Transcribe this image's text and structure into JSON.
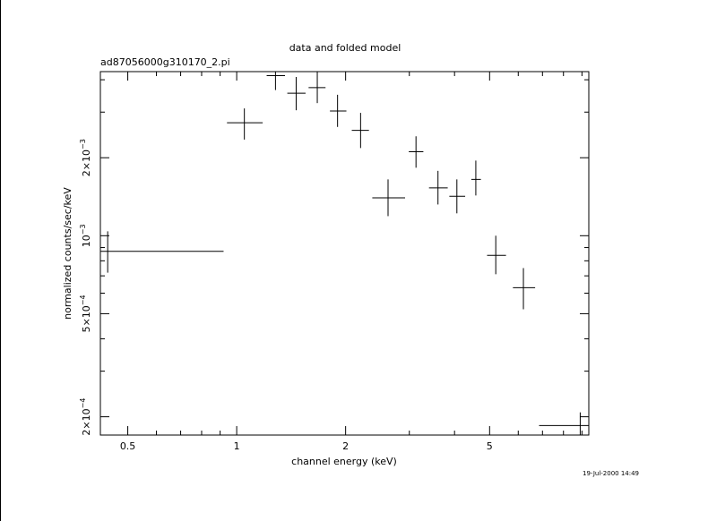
{
  "chart_data": {
    "type": "scatter",
    "title": "data and folded model",
    "subtitle": "ad87056000g310170_2.pi",
    "xlabel": "channel energy (keV)",
    "ylabel": "normalized counts/sec/keV",
    "x_scale": "log",
    "y_scale": "log",
    "xlim": [
      0.42,
      9.4
    ],
    "ylim": [
      0.00017,
      0.0043
    ],
    "x_ticks": [
      {
        "value": 0.5,
        "label": "0.5"
      },
      {
        "value": 1,
        "label": "1"
      },
      {
        "value": 2,
        "label": "2"
      },
      {
        "value": 5,
        "label": "5"
      }
    ],
    "y_ticks": [
      {
        "value": 0.0002,
        "mant": "2×10",
        "exp": "−4"
      },
      {
        "value": 0.0005,
        "mant": "5×10",
        "exp": "−4"
      },
      {
        "value": 0.001,
        "mant": "10",
        "exp": "−3"
      },
      {
        "value": 0.002,
        "mant": "2×10",
        "exp": "−3"
      }
    ],
    "points": [
      {
        "x": 0.44,
        "xlo": 0.42,
        "xhi": 0.92,
        "y": 0.00087,
        "ylo": 0.00072,
        "yhi": 0.00104
      },
      {
        "x": 1.05,
        "xlo": 0.94,
        "xhi": 1.18,
        "y": 0.00273,
        "ylo": 0.00235,
        "yhi": 0.0031
      },
      {
        "x": 1.28,
        "xlo": 1.21,
        "xhi": 1.36,
        "y": 0.00415,
        "ylo": 0.00365,
        "yhi": 0.0043
      },
      {
        "x": 1.46,
        "xlo": 1.38,
        "xhi": 1.55,
        "y": 0.00355,
        "ylo": 0.00305,
        "yhi": 0.0041
      },
      {
        "x": 1.67,
        "xlo": 1.58,
        "xhi": 1.76,
        "y": 0.00373,
        "ylo": 0.00325,
        "yhi": 0.0043
      },
      {
        "x": 1.9,
        "xlo": 1.81,
        "xhi": 2.01,
        "y": 0.00303,
        "ylo": 0.00263,
        "yhi": 0.0035
      },
      {
        "x": 2.2,
        "xlo": 2.08,
        "xhi": 2.32,
        "y": 0.00255,
        "ylo": 0.00218,
        "yhi": 0.00298
      },
      {
        "x": 2.62,
        "xlo": 2.37,
        "xhi": 2.92,
        "y": 0.0014,
        "ylo": 0.00119,
        "yhi": 0.00165
      },
      {
        "x": 3.13,
        "xlo": 2.99,
        "xhi": 3.28,
        "y": 0.00211,
        "ylo": 0.00183,
        "yhi": 0.00242
      },
      {
        "x": 3.6,
        "xlo": 3.4,
        "xhi": 3.83,
        "y": 0.00153,
        "ylo": 0.00132,
        "yhi": 0.00178
      },
      {
        "x": 4.06,
        "xlo": 3.87,
        "xhi": 4.28,
        "y": 0.00142,
        "ylo": 0.00122,
        "yhi": 0.00165
      },
      {
        "x": 4.58,
        "xlo": 4.45,
        "xhi": 4.73,
        "y": 0.00165,
        "ylo": 0.00143,
        "yhi": 0.00195
      },
      {
        "x": 5.2,
        "xlo": 4.92,
        "xhi": 5.55,
        "y": 0.00084,
        "ylo": 0.00071,
        "yhi": 0.001
      },
      {
        "x": 6.2,
        "xlo": 5.8,
        "xhi": 6.68,
        "y": 0.00063,
        "ylo": 0.00052,
        "yhi": 0.00075
      },
      {
        "x": 8.9,
        "xlo": 6.85,
        "xhi": 9.4,
        "y": 0.000185,
        "ylo": 0.00017,
        "yhi": 0.000208
      }
    ],
    "grid": false,
    "timestamp": "19-Jul-2000 14:49"
  }
}
